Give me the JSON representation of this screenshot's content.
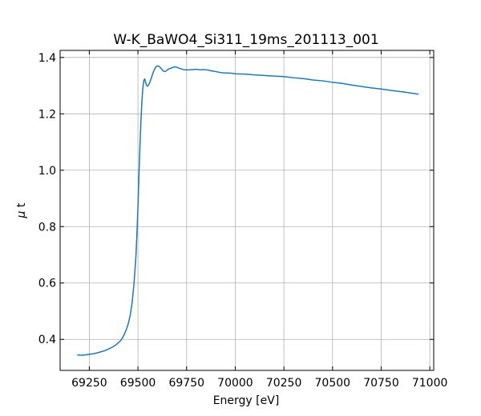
{
  "chart_data": {
    "type": "line",
    "title": "W-K_BaWO4_Si311_19ms_201113_001",
    "xlabel": "Energy [eV]",
    "ylabel_symbol": "μ",
    "ylabel_text": " t",
    "xlim": [
      69100,
      71020
    ],
    "ylim": [
      0.29,
      1.425
    ],
    "xticks": [
      69250,
      69500,
      69750,
      70000,
      70250,
      70500,
      70750,
      71000
    ],
    "xtick_labels": [
      "69250",
      "69500",
      "69750",
      "70000",
      "70250",
      "70500",
      "70750",
      "71000"
    ],
    "yticks": [
      0.4,
      0.6,
      0.8,
      1.0,
      1.2,
      1.4
    ],
    "ytick_labels": [
      "0.4",
      "0.6",
      "0.8",
      "1.0",
      "1.2",
      "1.4"
    ],
    "grid": true,
    "series": [
      {
        "color": "#1f77b4",
        "x": [
          69190,
          69210,
          69230,
          69250,
          69270,
          69290,
          69310,
          69330,
          69350,
          69370,
          69390,
          69410,
          69420,
          69430,
          69440,
          69450,
          69460,
          69470,
          69480,
          69490,
          69495,
          69500,
          69505,
          69510,
          69515,
          69520,
          69525,
          69530,
          69535,
          69540,
          69545,
          69550,
          69555,
          69560,
          69570,
          69580,
          69590,
          69600,
          69610,
          69620,
          69630,
          69640,
          69650,
          69660,
          69670,
          69680,
          69690,
          69700,
          69720,
          69740,
          69760,
          69780,
          69800,
          69820,
          69840,
          69860,
          69880,
          69900,
          69920,
          69940,
          69960,
          69980,
          70000,
          70050,
          70100,
          70150,
          70200,
          70250,
          70300,
          70350,
          70400,
          70450,
          70500,
          70550,
          70600,
          70650,
          70700,
          70750,
          70800,
          70850,
          70900,
          70940
        ],
        "y": [
          0.345,
          0.344,
          0.345,
          0.347,
          0.349,
          0.352,
          0.356,
          0.36,
          0.366,
          0.373,
          0.382,
          0.395,
          0.405,
          0.418,
          0.435,
          0.455,
          0.485,
          0.53,
          0.6,
          0.7,
          0.78,
          0.87,
          0.98,
          1.08,
          1.17,
          1.24,
          1.29,
          1.318,
          1.324,
          1.31,
          1.3,
          1.298,
          1.303,
          1.31,
          1.33,
          1.35,
          1.365,
          1.37,
          1.368,
          1.36,
          1.352,
          1.35,
          1.355,
          1.36,
          1.362,
          1.365,
          1.367,
          1.365,
          1.36,
          1.356,
          1.356,
          1.357,
          1.358,
          1.356,
          1.357,
          1.355,
          1.352,
          1.35,
          1.347,
          1.345,
          1.345,
          1.344,
          1.342,
          1.341,
          1.338,
          1.336,
          1.334,
          1.332,
          1.328,
          1.325,
          1.32,
          1.317,
          1.312,
          1.308,
          1.302,
          1.297,
          1.292,
          1.288,
          1.283,
          1.279,
          1.274,
          1.27
        ]
      }
    ]
  }
}
